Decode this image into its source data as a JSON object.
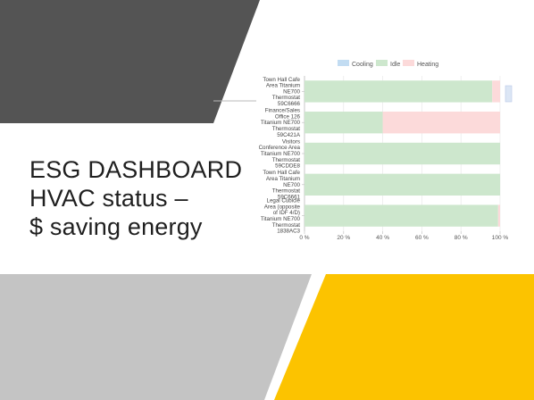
{
  "slide": {
    "title_lines": [
      "ESG DASHBOARD",
      "HVAC status –",
      "$ saving energy"
    ]
  },
  "colors": {
    "dark_shape": "#545454",
    "light_gray_shape": "#c4c4c4",
    "yellow_shape": "#fcc300",
    "cooling": "#c2dcf2",
    "idle": "#cde7cd",
    "heating": "#fcdada"
  },
  "chart_data": {
    "type": "bar",
    "orientation": "horizontal",
    "stacked": true,
    "title": "",
    "xlabel": "",
    "ylabel": "",
    "xlim": [
      0,
      100
    ],
    "x_ticks": [
      "0 %",
      "20 %",
      "40 %",
      "60 %",
      "80 %",
      "100 %"
    ],
    "legend_position": "top",
    "categories": [
      [
        "Town Hall Cafe",
        "Area Titanium",
        "NE700",
        "Thermostat",
        "59C6666"
      ],
      [
        "Finance/Sales",
        "Office 126",
        "Titanium NE700",
        "Thermostat",
        "59C421A"
      ],
      [
        "Visitors",
        "Conference Area",
        "Titanium NE700",
        "Thermostat",
        "59CDDE8"
      ],
      [
        "Town Hall Cafe",
        "Area Titanium",
        "NE700",
        "Thermostat",
        "59C6661"
      ],
      [
        "Legal Cubicle",
        "Area (opposite",
        "of IDF 4/D)",
        "Titanium NE700",
        "Thermostat",
        "1838AC3"
      ]
    ],
    "series": [
      {
        "name": "Cooling",
        "color": "#c2dcf2",
        "values": [
          0,
          0,
          0,
          0,
          0
        ]
      },
      {
        "name": "Idle",
        "color": "#cde7cd",
        "values": [
          96,
          40,
          100,
          100,
          99
        ]
      },
      {
        "name": "Heating",
        "color": "#fcdada",
        "values": [
          4,
          60,
          0,
          0,
          1
        ]
      }
    ]
  }
}
